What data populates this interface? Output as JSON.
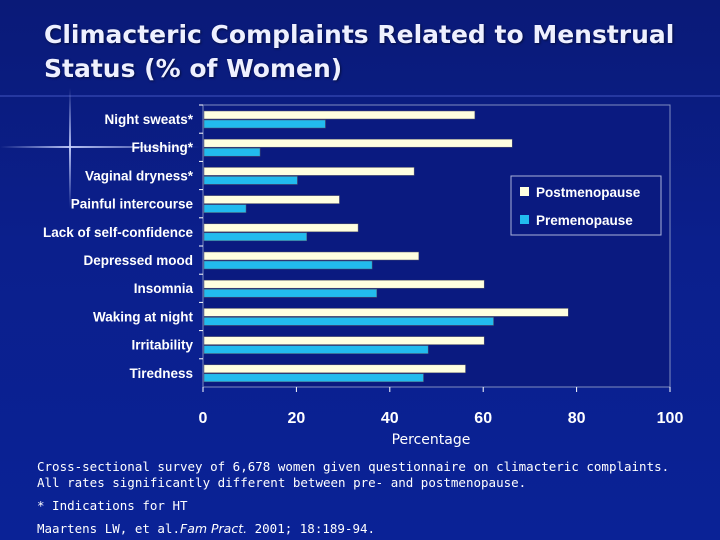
{
  "slide": {
    "title": "Climacteric Complaints Related to Menstrual Status (% of Women)",
    "note_line1": "Cross-sectional survey of 6,678 women given questionnaire on climacteric complaints.",
    "note_line2": "All rates significantly different between pre- and postmenopause.",
    "note_hint": "* Indications for HT",
    "citation_authors": "Maartens LW, et al.",
    "citation_journal": "Fam Pract.",
    "citation_rest": "2001; 18:189-94."
  },
  "chart_data": {
    "type": "bar",
    "orientation": "horizontal",
    "categories": [
      "Night sweats*",
      "Flushing*",
      "Vaginal dryness*",
      "Painful intercourse",
      "Lack of self-confidence",
      "Depressed mood",
      "Insomnia",
      "Waking at night",
      "Irritability",
      "Tiredness"
    ],
    "series": [
      {
        "name": "Postmenopause",
        "color": "#ffffe0",
        "values": [
          58,
          66,
          45,
          29,
          33,
          46,
          60,
          78,
          60,
          56
        ]
      },
      {
        "name": "Premenopause",
        "color": "#22bbee",
        "values": [
          26,
          12,
          20,
          9,
          22,
          36,
          37,
          62,
          48,
          47
        ]
      }
    ],
    "xlabel": "Percentage",
    "ylabel": "",
    "xlim": [
      0,
      100
    ],
    "xticks": [
      0,
      20,
      40,
      60,
      80,
      100
    ],
    "legend": "right"
  }
}
